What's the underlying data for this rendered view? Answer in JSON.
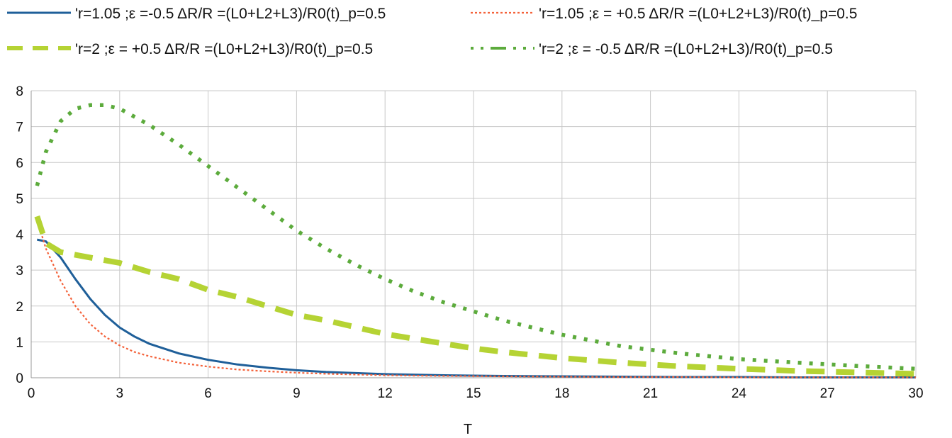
{
  "chart_data": {
    "type": "line",
    "xlabel": "T",
    "ylabel": "",
    "xlim": [
      0,
      30
    ],
    "ylim": [
      0,
      8
    ],
    "x_ticks": [
      0,
      3,
      6,
      9,
      12,
      15,
      18,
      21,
      24,
      27,
      30
    ],
    "y_ticks": [
      0,
      1,
      2,
      3,
      4,
      5,
      6,
      7,
      8
    ],
    "grid": true,
    "legend_position": "top",
    "series": [
      {
        "name": "'r=1.05 ;ε =-0.5  ΔR/R =(L0+L2+L3)/R0(t)_p=0.5",
        "color": "#1f5f99",
        "style": "solid",
        "x": [
          0.2,
          0.5,
          1,
          1.5,
          2,
          2.5,
          3,
          3.5,
          4,
          5,
          6,
          7,
          8,
          9,
          10,
          12,
          14,
          16,
          18,
          20,
          22,
          24,
          26,
          28,
          30
        ],
        "y": [
          3.85,
          3.8,
          3.35,
          2.75,
          2.2,
          1.75,
          1.4,
          1.15,
          0.95,
          0.68,
          0.5,
          0.37,
          0.28,
          0.21,
          0.16,
          0.1,
          0.07,
          0.05,
          0.04,
          0.03,
          0.02,
          0.02,
          0.01,
          0.01,
          0.01
        ]
      },
      {
        "name": "'r=1.05 ;ε = +0.5  ΔR/R =(L0+L2+L3)/R0(t)_p=0.5",
        "color": "#f4623a",
        "style": "dotted",
        "x": [
          0.2,
          0.5,
          1,
          1.5,
          2,
          2.5,
          3,
          3.5,
          4,
          5,
          6,
          7,
          8,
          9,
          10,
          12,
          14,
          16,
          18,
          20,
          22,
          24,
          26,
          28,
          30
        ],
        "y": [
          4.4,
          3.6,
          2.7,
          2.0,
          1.5,
          1.15,
          0.9,
          0.72,
          0.6,
          0.42,
          0.31,
          0.23,
          0.18,
          0.14,
          0.11,
          0.07,
          0.05,
          0.04,
          0.03,
          0.02,
          0.02,
          0.01,
          0.01,
          0.01,
          0.01
        ]
      },
      {
        "name": "'r=2 ;ε = +0.5  ΔR/R =(L0+L2+L3)/R0(t)_p=0.5",
        "color": "#b5d334",
        "style": "dashed",
        "x": [
          0.2,
          0.5,
          1,
          2,
          3,
          4,
          5,
          6,
          7,
          8,
          9,
          10,
          12,
          14,
          15,
          16,
          18,
          20,
          22,
          24,
          26,
          28,
          30
        ],
        "y": [
          4.5,
          3.75,
          3.5,
          3.35,
          3.2,
          2.95,
          2.75,
          2.45,
          2.25,
          2.0,
          1.75,
          1.6,
          1.22,
          0.95,
          0.82,
          0.72,
          0.55,
          0.42,
          0.32,
          0.25,
          0.19,
          0.15,
          0.11
        ]
      },
      {
        "name": "'r=2 ;ε = -0.5  ΔR/R =(L0+L2+L3)/R0(t)_p=0.5",
        "color": "#5cab3c",
        "style": "dash-dot",
        "x": [
          0.2,
          0.5,
          1,
          1.5,
          2,
          2.5,
          3,
          4,
          5,
          6,
          7,
          8,
          9,
          10,
          11,
          12,
          13,
          14,
          15,
          16,
          18,
          20,
          22,
          24,
          26,
          28,
          30
        ],
        "y": [
          5.35,
          6.3,
          7.15,
          7.5,
          7.6,
          7.6,
          7.5,
          7.05,
          6.5,
          5.9,
          5.3,
          4.7,
          4.1,
          3.6,
          3.15,
          2.75,
          2.4,
          2.1,
          1.85,
          1.6,
          1.2,
          0.88,
          0.68,
          0.52,
          0.42,
          0.33,
          0.25
        ]
      }
    ]
  }
}
